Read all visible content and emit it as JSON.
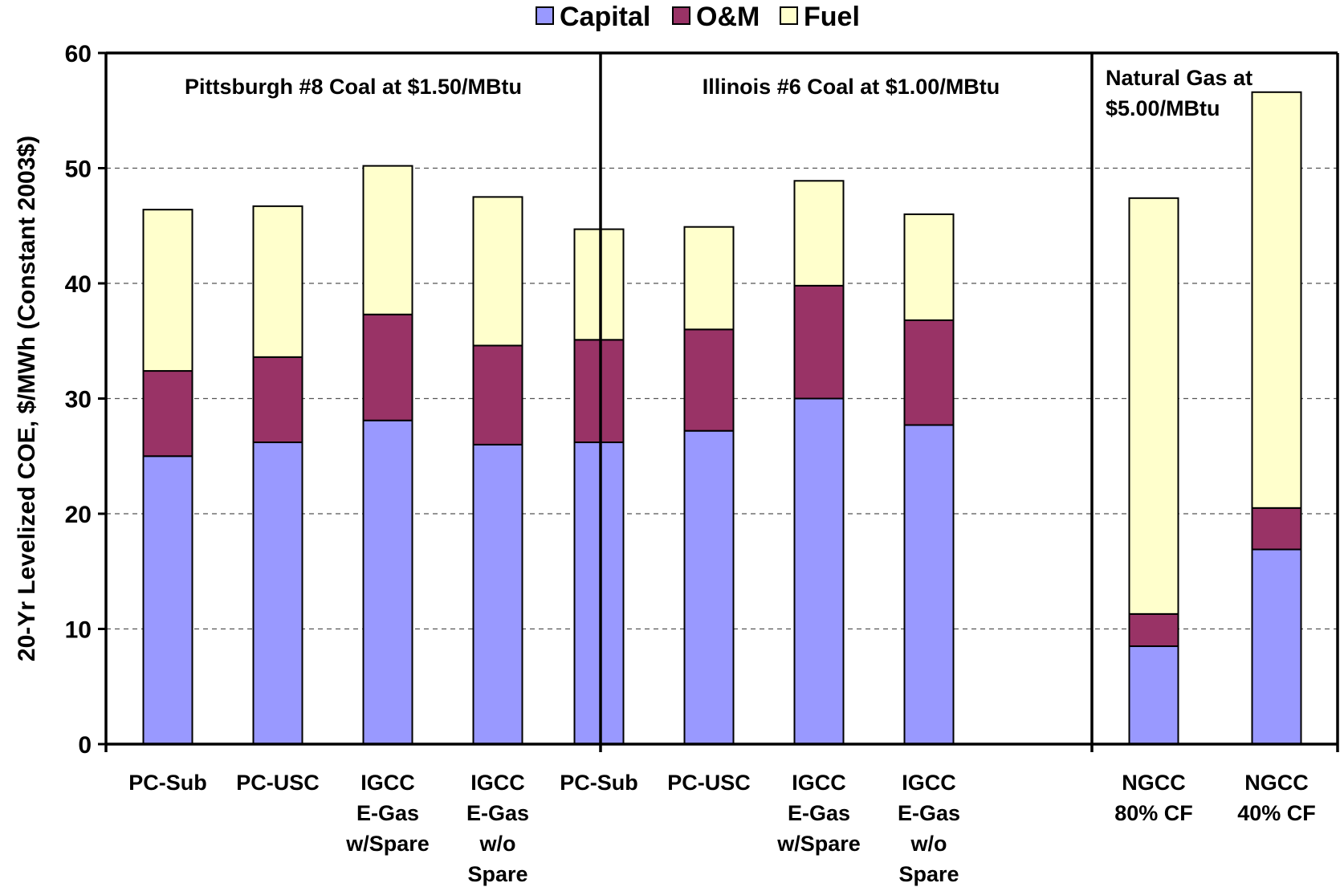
{
  "chart_data": {
    "type": "bar",
    "stacked": true,
    "ylabel": "20-Yr Levelized COE, $/MWh (Constant 2003$)",
    "ylim": [
      0,
      60
    ],
    "yticks": [
      "0",
      "10",
      "20",
      "30",
      "40",
      "50",
      "60"
    ],
    "grid": "horizontal dashed",
    "legend_position": "top",
    "series": [
      {
        "name": "Capital",
        "color": "#9999ff",
        "values": [
          25.0,
          26.2,
          28.1,
          26.0,
          26.2,
          27.2,
          30.0,
          27.7,
          8.5,
          16.9
        ]
      },
      {
        "name": "O&M",
        "color": "#993366",
        "values": [
          7.4,
          7.4,
          9.2,
          8.6,
          8.9,
          8.8,
          9.8,
          9.1,
          2.8,
          3.6
        ]
      },
      {
        "name": "Fuel",
        "color": "#ffffcc",
        "values": [
          14.0,
          13.1,
          12.9,
          12.9,
          9.6,
          8.9,
          9.1,
          9.2,
          36.1,
          36.1
        ]
      }
    ],
    "categories": [
      [
        "PC-Sub"
      ],
      [
        "PC-USC"
      ],
      [
        "IGCC",
        "E-Gas",
        "w/Spare"
      ],
      [
        "IGCC",
        "E-Gas",
        "w/o",
        "Spare"
      ],
      [
        "PC-Sub"
      ],
      [
        "PC-USC"
      ],
      [
        "IGCC",
        "E-Gas",
        "w/Spare"
      ],
      [
        "IGCC",
        "E-Gas",
        "w/o",
        "Spare"
      ],
      [
        "NGCC",
        "80% CF"
      ],
      [
        "NGCC",
        "40% CF"
      ]
    ],
    "groups": [
      {
        "label": [
          "Pittsburgh #8 Coal at $1.50/MBtu"
        ],
        "start": 0,
        "end": 3
      },
      {
        "label": [
          "Illinois #6 Coal at $1.00/MBtu"
        ],
        "start": 4,
        "end": 7
      },
      {
        "label": [
          "Natural Gas at",
          "$5.00/MBtu"
        ],
        "start": 8,
        "end": 9
      }
    ]
  }
}
